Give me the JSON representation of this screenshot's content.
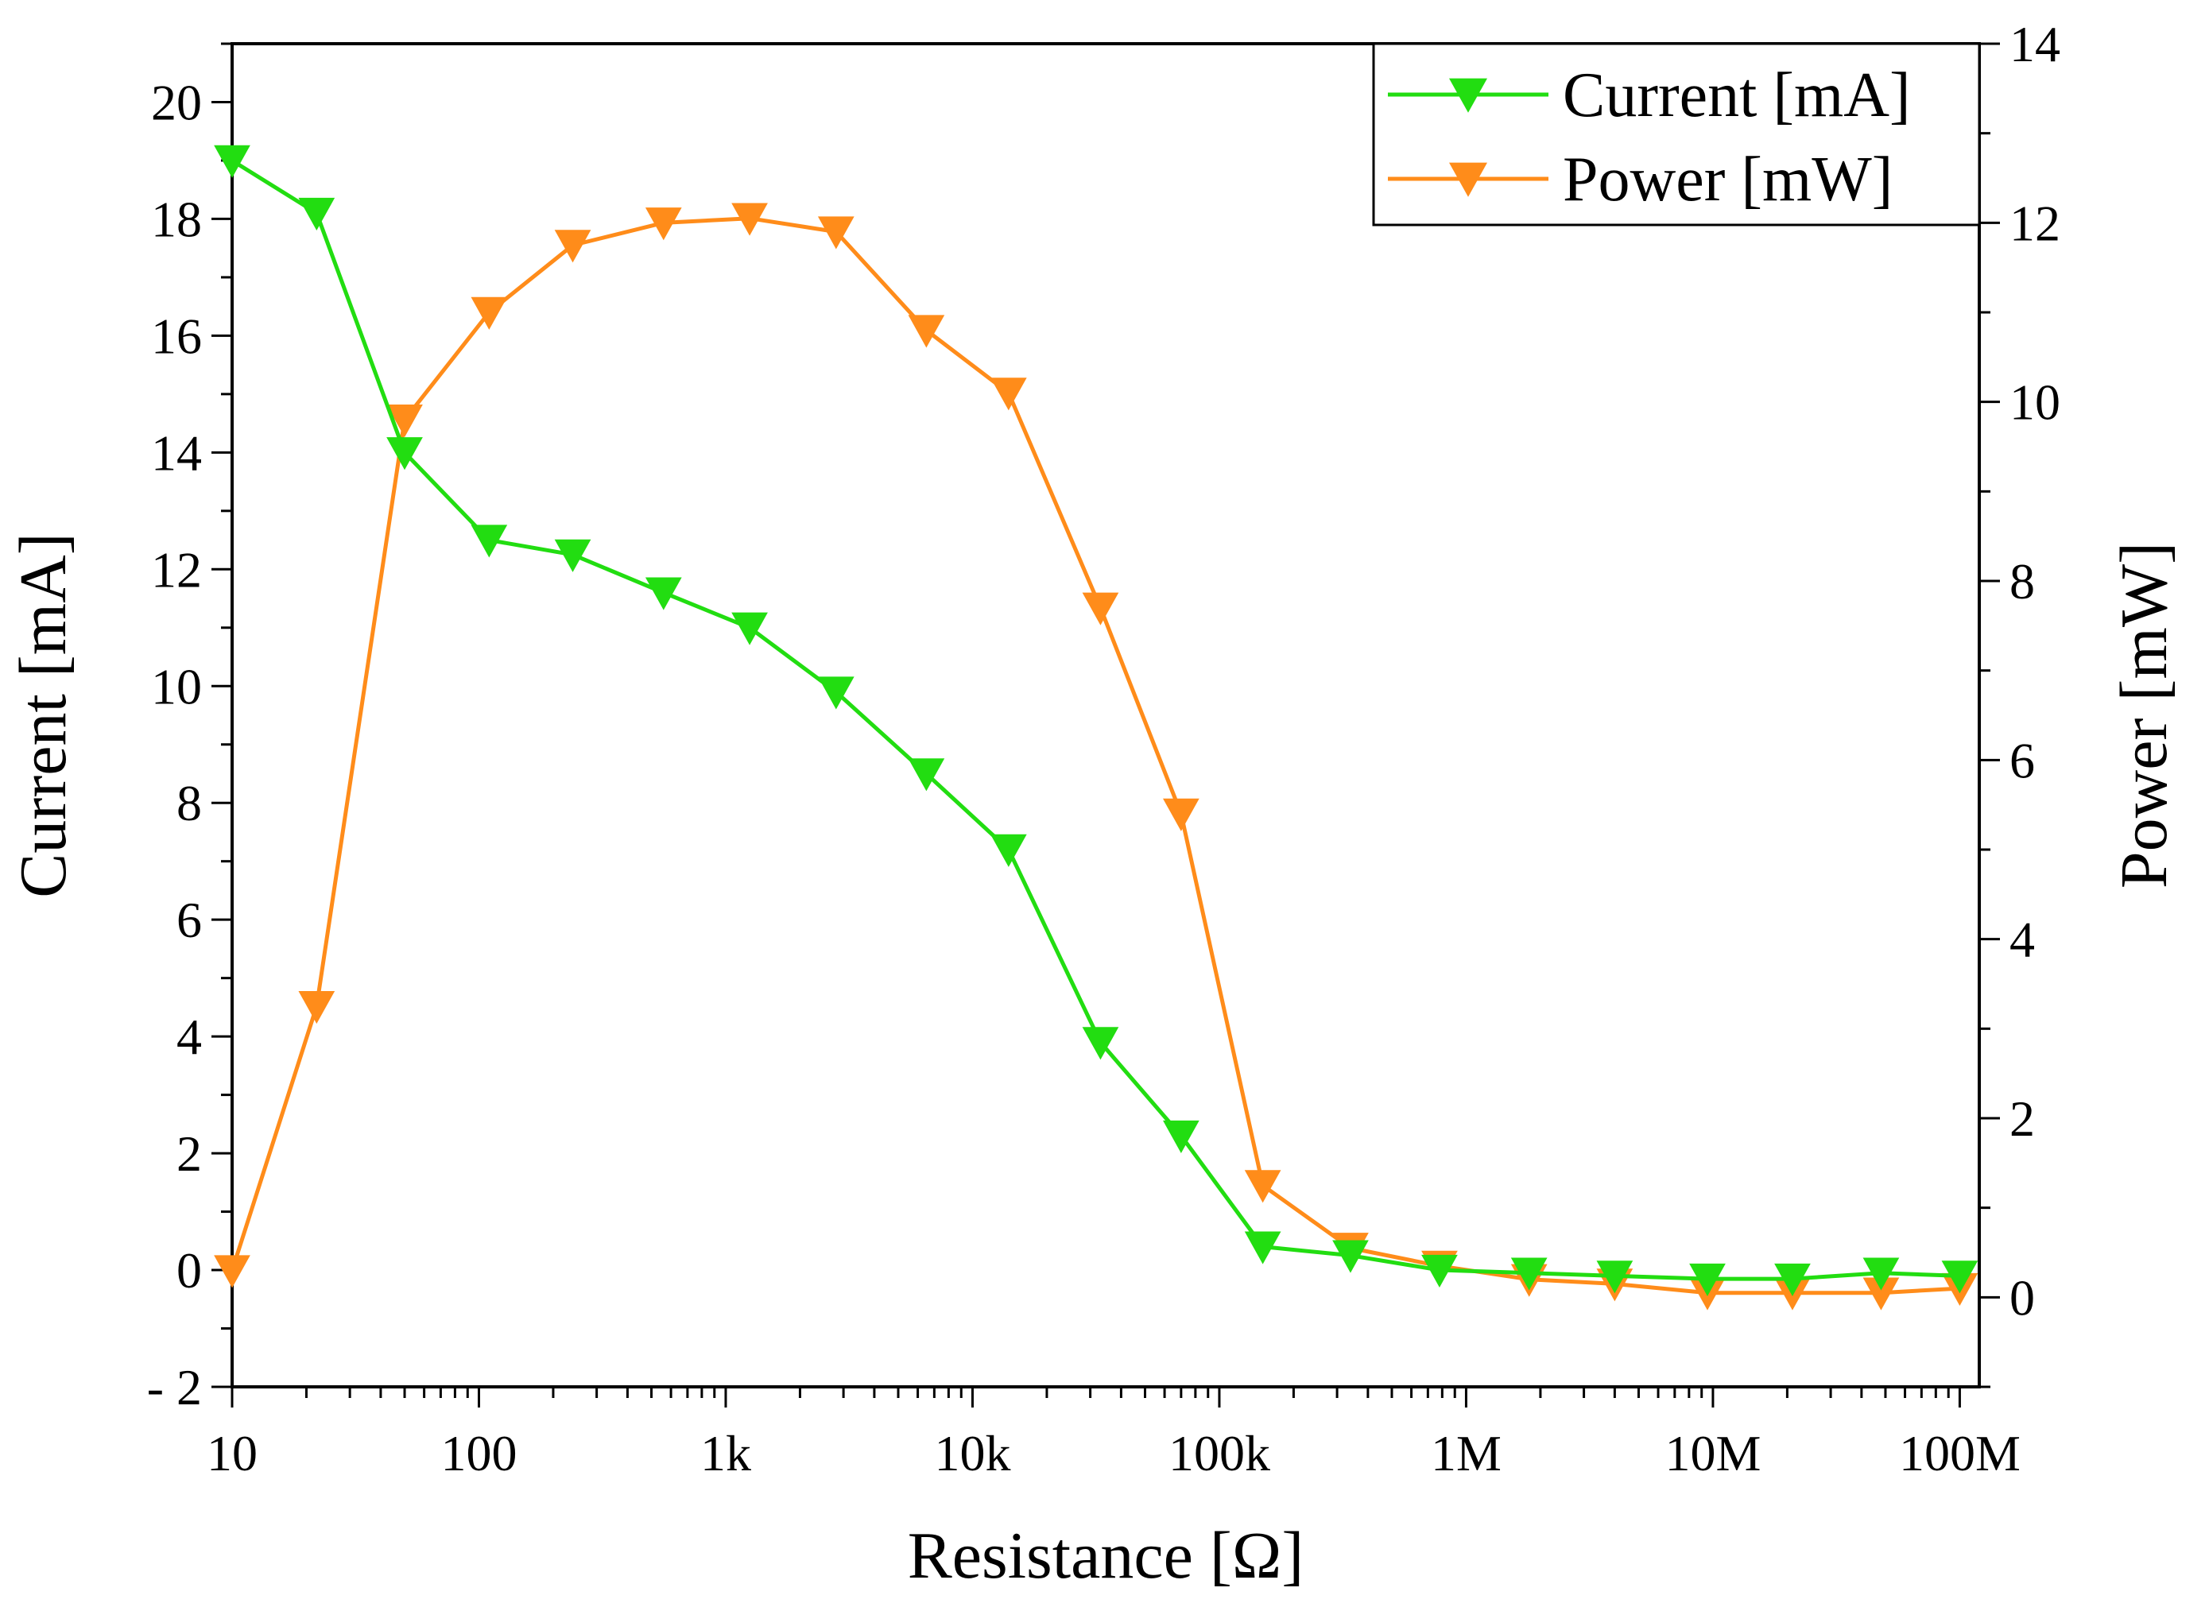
{
  "chart_data": {
    "type": "line",
    "title": "",
    "xlabel": "Resistance [Ω]",
    "ylabel": "Current [mA]",
    "y2label": "Power [mW]",
    "x_scale": "log",
    "xlim": [
      10,
      120000000
    ],
    "ylim": [
      -2,
      21
    ],
    "y2lim": [
      -1,
      14
    ],
    "x_ticks": [
      {
        "value": 10,
        "label": "10"
      },
      {
        "value": 100,
        "label": "100"
      },
      {
        "value": 1000,
        "label": "1k"
      },
      {
        "value": 10000,
        "label": "10k"
      },
      {
        "value": 100000,
        "label": "100k"
      },
      {
        "value": 1000000,
        "label": "1M"
      },
      {
        "value": 10000000,
        "label": "10M"
      },
      {
        "value": 100000000,
        "label": "100M"
      }
    ],
    "y_ticks": [
      -2,
      0,
      2,
      4,
      6,
      8,
      10,
      12,
      14,
      16,
      18,
      20
    ],
    "y_tick_labels": [
      "- 2",
      "0",
      "2",
      "4",
      "6",
      "8",
      "10",
      "12",
      "14",
      "16",
      "18",
      "20"
    ],
    "y2_ticks": [
      0,
      2,
      4,
      6,
      8,
      10,
      12,
      14
    ],
    "legend_position": "top-right",
    "grid": false,
    "x": [
      10,
      22,
      50,
      110,
      240,
      560,
      1250,
      2800,
      6500,
      14000,
      33000,
      70000,
      150000,
      340000,
      780000,
      1800000,
      4000000,
      9500000,
      21000000,
      48000000,
      100000000
    ],
    "series": [
      {
        "name": "Current [mA]",
        "axis": "left",
        "color": "#22dd11",
        "marker": "triangle-down",
        "values": [
          19.0,
          18.1,
          14.0,
          12.5,
          12.25,
          11.6,
          11.0,
          9.9,
          8.5,
          7.2,
          3.9,
          2.3,
          0.4,
          0.25,
          0.0,
          -0.05,
          -0.1,
          -0.15,
          -0.15,
          -0.05,
          -0.1
        ]
      },
      {
        "name": "Power [mW]",
        "axis": "right",
        "color": "#ff8c1a",
        "marker": "triangle-down",
        "values": [
          0.3,
          3.25,
          9.8,
          11.0,
          11.75,
          12.0,
          12.05,
          11.9,
          10.8,
          10.1,
          7.7,
          5.4,
          1.25,
          0.55,
          0.35,
          0.2,
          0.15,
          0.05,
          0.05,
          0.05,
          0.1
        ]
      }
    ]
  }
}
